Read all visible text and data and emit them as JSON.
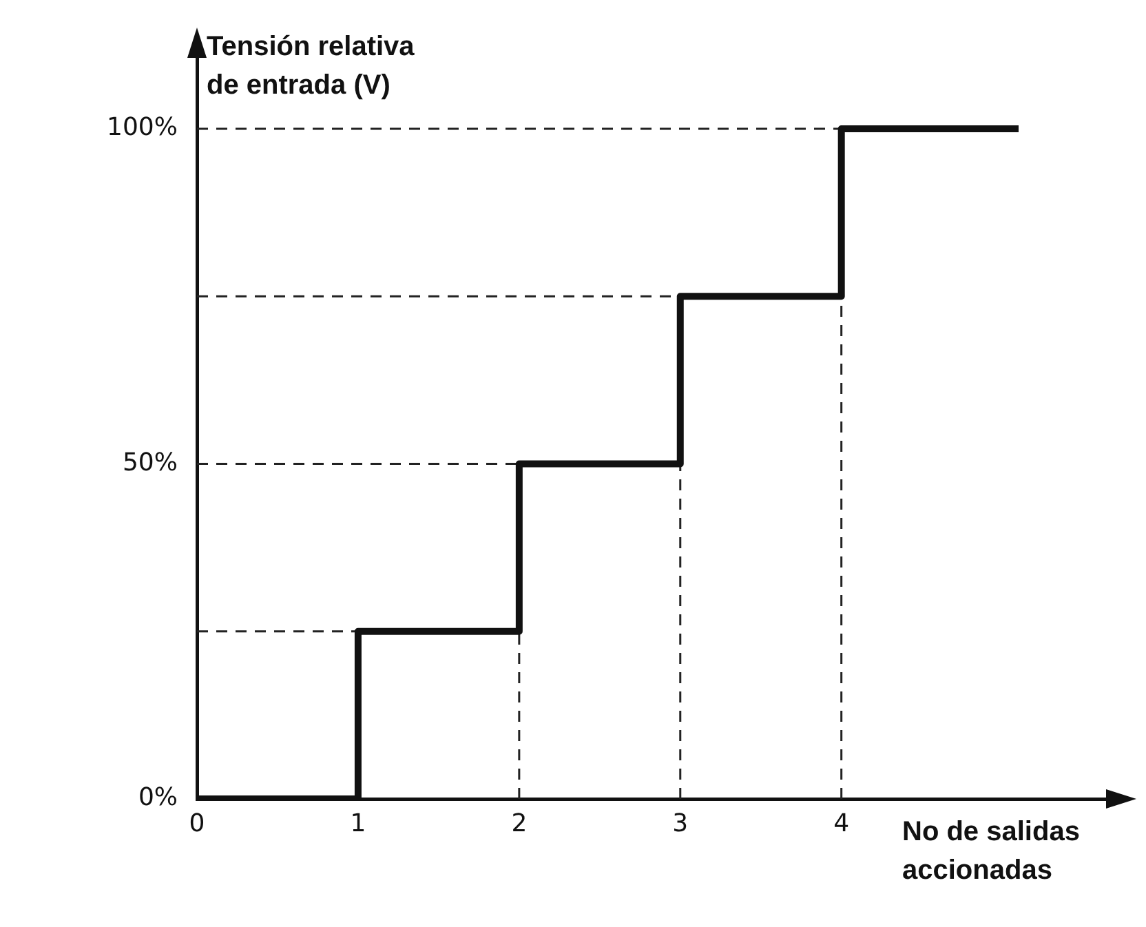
{
  "chart_data": {
    "type": "step",
    "ylabel": "Tensión relativa\nde entrada (V)",
    "xlabel": "No de salidas\naccionadas",
    "x": [
      0,
      1,
      2,
      3,
      4,
      5.1
    ],
    "series": [
      {
        "color": "#111111",
        "values": [
          0,
          25,
          50,
          75,
          100,
          100
        ]
      }
    ],
    "xlim": [
      0,
      5.66
    ],
    "xticks": [
      0,
      1,
      2,
      3,
      4
    ],
    "ylim": [
      0,
      111
    ],
    "yticks": [
      {
        "value": 0,
        "label": "0%"
      },
      {
        "value": 50,
        "label": "50%"
      },
      {
        "value": 100,
        "label": "100%"
      }
    ],
    "grid": false,
    "legend": false,
    "ref_lines": [
      {
        "axis": "y",
        "value": 25,
        "line_style": "dashed"
      },
      {
        "axis": "y",
        "value": 50,
        "line_style": "dashed"
      },
      {
        "axis": "y",
        "value": 75,
        "line_style": "dashed"
      },
      {
        "axis": "y",
        "value": 100,
        "line_style": "dashed"
      },
      {
        "axis": "x",
        "value": 2,
        "line_style": "dashed"
      },
      {
        "axis": "x",
        "value": 3,
        "line_style": "dashed"
      },
      {
        "axis": "x",
        "value": 4,
        "line_style": "dashed"
      }
    ]
  }
}
